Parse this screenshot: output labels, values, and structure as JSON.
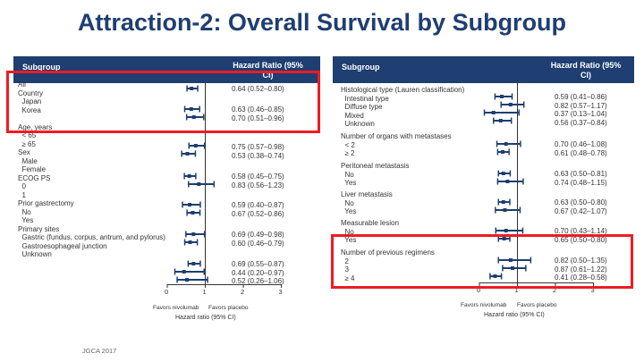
{
  "title": "Attraction-2: Overall Survival by Subgroup",
  "colors": {
    "accent": "#1f3e72",
    "highlight": "#ee1c24",
    "marker": "#1f3e72"
  },
  "left_panel": {
    "header_subgroup": "Subgroup",
    "header_hr": "Hazard Ratio (95%\nCI)",
    "labels": "All\nCountry\n  Japan\n  Korea\n\nAge, years\n  < 65\n  ≥ 65\nSex\n  Male\n  Female\nECOG PS\n  0\n  1\nPrior gastrectomy\n  No\n  Yes\nPrimary sites\n  Gastric (fundus, corpus, antrum, and pylorus)\n  Gastroesophageal junction\n  Unknown",
    "hr_top": "0.64 (0.52–0.80)",
    "hr_country": "0.63 (0.46–0.85)\n0.70 (0.51–0.96)",
    "hr_age": "0.75 (0.57–0.98)\n0.53 (0.38–0.74)",
    "hr_sex": "0.58 (0.45–0.75)\n0.83 (0.56–1.23)",
    "hr_ecog": "0.59 (0.40–0.87)\n0.67 (0.52–0.86)",
    "hr_gast": "0.69 (0.49–0.98)\n0.60 (0.46–0.79)",
    "hr_sites": "0.69 (0.55–0.87)\n0.44 (0.20–0.97)\n0.52 (0.26–1.06)",
    "ticks": [
      "0",
      "1",
      "2",
      "3"
    ],
    "favors_left": "Favors nivolumab",
    "favors_right": "Favors placebo",
    "axis_label": "Hazard ratio (95% CI)"
  },
  "right_panel": {
    "header_subgroup": "Subgroup",
    "header_hr": "Hazard Ratio (95%\nCI)",
    "labels_1": "Histological type (Lauren classification)\n  Intestinal type\n  Diffuse type\n  Mixed\n  Unknown",
    "hr_1": "0.59 (0.41–0.86)\n0.82 (0.57–1.17)\n0.37 (0.13–1.04)\n0.56 (0.37–0.84)",
    "labels_2": "Number of organs with metastases\n  < 2\n  ≥ 2",
    "hr_2": "0.70 (0.46–1.08)\n0.61 (0.48–0.78)",
    "labels_3": "Peritoneal metastasis\n  No\n  Yes",
    "hr_3": "0.63 (0.50–0.81)\n0.74 (0.48–1.15)",
    "labels_4": "Liver metastasis\n  No\n  Yes",
    "hr_4": "0.63 (0.50–0.80)\n0.67 (0.42–1.07)",
    "labels_5": "Measurable lesion\n  No\n  Yes",
    "hr_5": "0.70 (0.43–1.14)\n0.65 (0.50–0.80)",
    "labels_6": "Number of previous regimens\n  2\n  3\n  ≥ 4",
    "hr_6": "0.82 (0.50–1.35)\n0.87 (0.61–1.22)\n0.41 (0.28–0.58)",
    "ticks": [
      "0",
      "1",
      "2",
      "3"
    ],
    "favors_left": "Favors nivolumab",
    "favors_right": "Favors placebo",
    "axis_label": "Hazard ratio (95% CI)"
  },
  "footer": "JGCA 2017",
  "chart_data": [
    {
      "type": "forest",
      "series": [
        {
          "name": "Overall survival",
          "values": [
            {
              "subgroup": "All",
              "hr": 0.64,
              "lo": 0.52,
              "hi": 0.8
            },
            {
              "subgroup": "Japan",
              "hr": 0.63,
              "lo": 0.46,
              "hi": 0.85
            },
            {
              "subgroup": "Korea",
              "hr": 0.7,
              "lo": 0.51,
              "hi": 0.96
            },
            {
              "subgroup": "Age < 65",
              "hr": 0.75,
              "lo": 0.57,
              "hi": 0.98
            },
            {
              "subgroup": "Age ≥ 65",
              "hr": 0.53,
              "lo": 0.38,
              "hi": 0.74
            },
            {
              "subgroup": "Male",
              "hr": 0.58,
              "lo": 0.45,
              "hi": 0.75
            },
            {
              "subgroup": "Female",
              "hr": 0.83,
              "lo": 0.56,
              "hi": 1.23
            },
            {
              "subgroup": "ECOG PS 0",
              "hr": 0.59,
              "lo": 0.4,
              "hi": 0.87
            },
            {
              "subgroup": "ECOG PS 1",
              "hr": 0.67,
              "lo": 0.52,
              "hi": 0.86
            },
            {
              "subgroup": "Prior gastrectomy No",
              "hr": 0.69,
              "lo": 0.49,
              "hi": 0.98
            },
            {
              "subgroup": "Prior gastrectomy Yes",
              "hr": 0.6,
              "lo": 0.46,
              "hi": 0.79
            },
            {
              "subgroup": "Gastric",
              "hr": 0.69,
              "lo": 0.55,
              "hi": 0.87
            },
            {
              "subgroup": "Gastroesophageal junction",
              "hr": 0.44,
              "lo": 0.2,
              "hi": 0.97
            },
            {
              "subgroup": "Unknown",
              "hr": 0.52,
              "lo": 0.26,
              "hi": 1.06
            }
          ]
        }
      ],
      "xlim": [
        0,
        3
      ],
      "xlabel": "Hazard ratio (95% CI)",
      "reference_line": 1
    },
    {
      "type": "forest",
      "series": [
        {
          "name": "Overall survival",
          "values": [
            {
              "subgroup": "Intestinal type",
              "hr": 0.59,
              "lo": 0.41,
              "hi": 0.86
            },
            {
              "subgroup": "Diffuse type",
              "hr": 0.82,
              "lo": 0.57,
              "hi": 1.17
            },
            {
              "subgroup": "Mixed",
              "hr": 0.37,
              "lo": 0.13,
              "hi": 1.04
            },
            {
              "subgroup": "Unknown",
              "hr": 0.56,
              "lo": 0.37,
              "hi": 0.84
            },
            {
              "subgroup": "Organs < 2",
              "hr": 0.7,
              "lo": 0.46,
              "hi": 1.08
            },
            {
              "subgroup": "Organs ≥ 2",
              "hr": 0.61,
              "lo": 0.48,
              "hi": 0.78
            },
            {
              "subgroup": "Peritoneal No",
              "hr": 0.63,
              "lo": 0.5,
              "hi": 0.81
            },
            {
              "subgroup": "Peritoneal Yes",
              "hr": 0.74,
              "lo": 0.48,
              "hi": 1.15
            },
            {
              "subgroup": "Liver No",
              "hr": 0.63,
              "lo": 0.5,
              "hi": 0.8
            },
            {
              "subgroup": "Liver Yes",
              "hr": 0.67,
              "lo": 0.42,
              "hi": 1.07
            },
            {
              "subgroup": "Measurable No",
              "hr": 0.7,
              "lo": 0.43,
              "hi": 1.14
            },
            {
              "subgroup": "Measurable Yes",
              "hr": 0.65,
              "lo": 0.5,
              "hi": 0.8
            },
            {
              "subgroup": "Regimens 2",
              "hr": 0.82,
              "lo": 0.5,
              "hi": 1.35
            },
            {
              "subgroup": "Regimens 3",
              "hr": 0.87,
              "lo": 0.61,
              "hi": 1.22
            },
            {
              "subgroup": "Regimens ≥ 4",
              "hr": 0.41,
              "lo": 0.28,
              "hi": 0.58
            }
          ]
        }
      ],
      "xlim": [
        0,
        3
      ],
      "xlabel": "Hazard ratio (95% CI)",
      "reference_line": 1
    }
  ]
}
